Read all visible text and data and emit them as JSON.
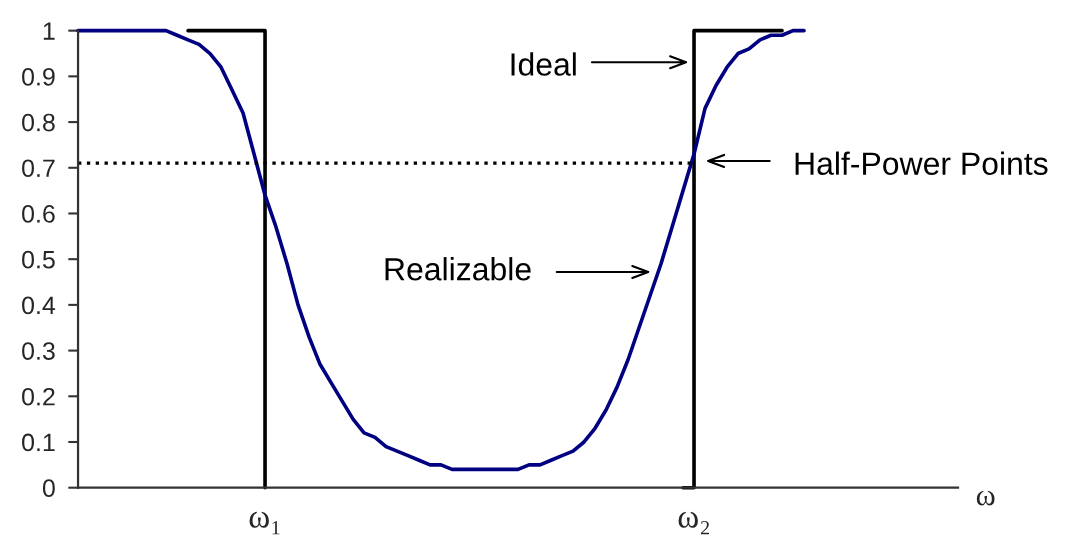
{
  "chart_data": {
    "type": "line",
    "xlabel": "ω",
    "categories": [
      null,
      null,
      null,
      null,
      null,
      null,
      null,
      null,
      null,
      null,
      null,
      null,
      null,
      null,
      null,
      null,
      null,
      "ω₁",
      null,
      null,
      null,
      null,
      null,
      null,
      null,
      null,
      null,
      null,
      null,
      null,
      null,
      null,
      null,
      null,
      null,
      null,
      null,
      null,
      null,
      null,
      null,
      null,
      null,
      null,
      null,
      null,
      null,
      null,
      null,
      null,
      null,
      null,
      null,
      null,
      null,
      null,
      "ω₂",
      null,
      null,
      null,
      null,
      null,
      null,
      null,
      null,
      null,
      null,
      null,
      null,
      null,
      null,
      null,
      null,
      null,
      null,
      null,
      null,
      null,
      null,
      null,
      null
    ],
    "ylim": [
      0,
      1
    ],
    "yticks": [
      0,
      0.1,
      0.2,
      0.3,
      0.4,
      0.5,
      0.6,
      0.7,
      0.8,
      0.9,
      1
    ],
    "series": [
      {
        "type": "step",
        "color": "#000000",
        "values": [
          null,
          null,
          null,
          null,
          null,
          null,
          null,
          null,
          null,
          null,
          1,
          1,
          1,
          1,
          1,
          1,
          1,
          0,
          null,
          null,
          null,
          null,
          null,
          null,
          null,
          null,
          null,
          null,
          null,
          null,
          null,
          null,
          null,
          null,
          null,
          null,
          null,
          null,
          null,
          null,
          null,
          null,
          null,
          null,
          null,
          null,
          null,
          null,
          null,
          null,
          null,
          null,
          null,
          null,
          null,
          0,
          1,
          1,
          1,
          1,
          1,
          1,
          1,
          1,
          1,
          null,
          null,
          null,
          null,
          null,
          null,
          null,
          null,
          null,
          null,
          null,
          null,
          null,
          null,
          null,
          null
        ]
      },
      {
        "color": "#000080",
        "values": [
          1,
          1,
          1,
          1,
          1,
          1,
          1,
          1,
          1,
          0.99,
          0.98,
          0.97,
          0.95,
          0.92,
          0.87,
          0.82,
          0.73,
          0.64,
          0.57,
          0.49,
          0.4,
          0.33,
          0.27,
          0.23,
          0.19,
          0.15,
          0.12,
          0.11,
          0.09,
          0.08,
          0.07,
          0.06,
          0.05,
          0.05,
          0.04,
          0.04,
          0.04,
          0.04,
          0.04,
          0.04,
          0.04,
          0.05,
          0.05,
          0.06,
          0.07,
          0.08,
          0.1,
          0.13,
          0.17,
          0.22,
          0.28,
          0.35,
          0.42,
          0.49,
          0.57,
          0.65,
          0.73,
          0.83,
          0.88,
          0.92,
          0.95,
          0.96,
          0.98,
          0.99,
          0.99,
          1,
          1,
          null,
          null,
          null,
          null,
          null,
          null,
          null,
          null,
          null,
          null,
          null,
          null,
          null,
          null
        ]
      }
    ],
    "ref_lines": [
      {
        "axis": "y",
        "value": 0.71,
        "line_style": "dotted",
        "color": "#000000"
      }
    ],
    "annotations": [
      "Ideal",
      "Realizable",
      "Half-Power Points"
    ]
  }
}
